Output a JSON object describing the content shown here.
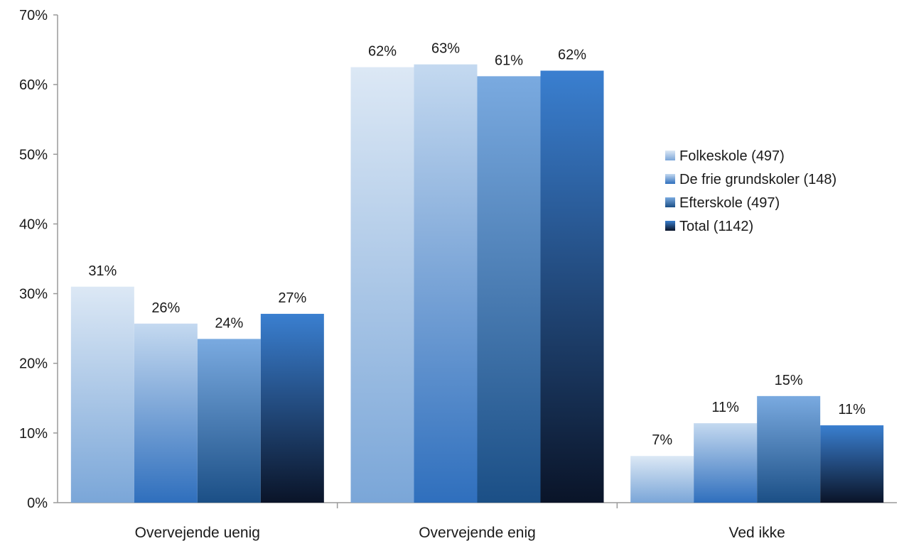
{
  "chart_data": {
    "type": "bar",
    "title": "",
    "xlabel": "",
    "ylabel": "",
    "ylim": [
      0,
      70
    ],
    "yticks": [
      0,
      10,
      20,
      30,
      40,
      50,
      60,
      70
    ],
    "ytick_labels": [
      "0%",
      "10%",
      "20%",
      "30%",
      "40%",
      "50%",
      "60%",
      "70%"
    ],
    "grid": false,
    "legend_position": "right",
    "categories": [
      "Overvejende uenig",
      "Overvejende enig",
      "Ved ikke"
    ],
    "series": [
      {
        "name": "Folkeskole (497)",
        "values": [
          31,
          62.5,
          6.7
        ],
        "labels": [
          "31%",
          "62%",
          "7%"
        ],
        "color_top": "#dce8f5",
        "color_bottom": "#7aa6d8"
      },
      {
        "name": "De frie grundskoler (148)",
        "values": [
          25.7,
          62.9,
          11.4
        ],
        "labels": [
          "26%",
          "63%",
          "11%"
        ],
        "color_top": "#c4d9f0",
        "color_bottom": "#2f6fbd"
      },
      {
        "name": "Efterskole (497)",
        "values": [
          23.5,
          61.2,
          15.3
        ],
        "labels": [
          "24%",
          "61%",
          "15%"
        ],
        "color_top": "#7aaae0",
        "color_bottom": "#1b4f86"
      },
      {
        "name": "Total (1142)",
        "values": [
          27.1,
          62,
          11.1
        ],
        "labels": [
          "27%",
          "62%",
          "11%"
        ],
        "color_top": "#3a7fd0",
        "color_bottom": "#0a1428"
      }
    ]
  }
}
